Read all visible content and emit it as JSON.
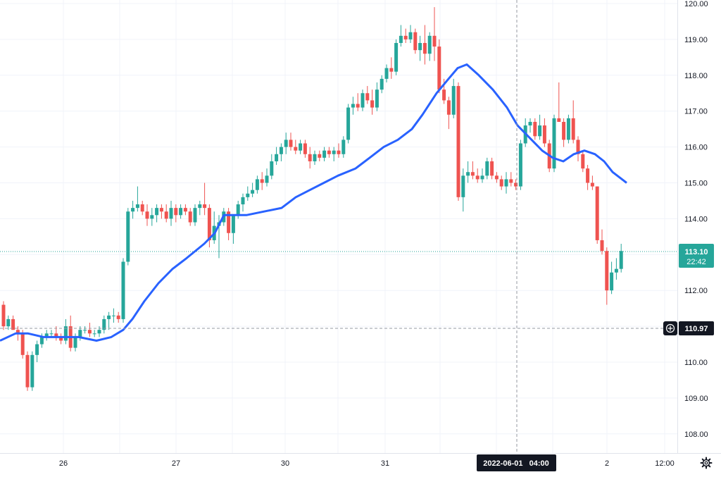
{
  "chart_data": {
    "type": "candlestick",
    "price_axis": {
      "ticks": [
        "120.00",
        "119.00",
        "118.00",
        "117.00",
        "116.00",
        "115.00",
        "114.00",
        "113.00",
        "112.00",
        "111.00",
        "110.00",
        "109.00",
        "108.00"
      ],
      "range": [
        107.6,
        120.1
      ],
      "grid": true
    },
    "time_axis": {
      "labels": [
        "26",
        "27",
        "30",
        "31",
        "2",
        "12:00"
      ],
      "crosshair_label": "2022-06-01   04:00"
    },
    "last_price": {
      "value": "113.10",
      "countdown": "22:42",
      "color": "#26a69a"
    },
    "crosshair_price": {
      "value": "110.97"
    },
    "colors": {
      "up": "#26a69a",
      "down": "#ef5350",
      "ma": "#2962ff",
      "grid": "#f0f3fa"
    },
    "candles": [
      [
        111.6,
        111.7,
        110.9,
        111.0
      ],
      [
        111.0,
        111.3,
        110.9,
        111.2
      ],
      [
        111.2,
        111.3,
        110.9,
        110.9
      ],
      [
        110.9,
        111.0,
        110.6,
        110.8
      ],
      [
        110.8,
        110.9,
        110.1,
        110.2
      ],
      [
        110.2,
        110.3,
        109.2,
        109.3
      ],
      [
        109.3,
        110.3,
        109.2,
        110.2
      ],
      [
        110.2,
        110.6,
        110.0,
        110.5
      ],
      [
        110.5,
        110.8,
        110.4,
        110.7
      ],
      [
        110.7,
        110.9,
        110.6,
        110.8
      ],
      [
        110.8,
        110.9,
        110.7,
        110.8
      ],
      [
        110.8,
        111.0,
        110.6,
        110.7
      ],
      [
        110.7,
        110.8,
        110.5,
        110.6
      ],
      [
        110.6,
        111.2,
        110.5,
        111.0
      ],
      [
        111.0,
        111.3,
        110.3,
        110.4
      ],
      [
        110.4,
        110.8,
        110.3,
        110.7
      ],
      [
        110.7,
        111.0,
        110.6,
        110.9
      ],
      [
        110.9,
        111.0,
        110.8,
        110.9
      ],
      [
        110.9,
        111.1,
        110.7,
        110.8
      ],
      [
        110.8,
        110.9,
        110.7,
        110.8
      ],
      [
        110.8,
        111.0,
        110.7,
        110.9
      ],
      [
        110.9,
        111.3,
        110.8,
        111.2
      ],
      [
        111.2,
        111.4,
        110.9,
        111.3
      ],
      [
        111.3,
        111.5,
        111.1,
        111.3
      ],
      [
        111.3,
        111.4,
        111.1,
        111.2
      ],
      [
        111.2,
        112.9,
        111.1,
        112.8
      ],
      [
        112.8,
        114.3,
        112.7,
        114.2
      ],
      [
        114.2,
        114.5,
        114.0,
        114.3
      ],
      [
        114.3,
        114.9,
        114.2,
        114.4
      ],
      [
        114.4,
        114.5,
        114.1,
        114.2
      ],
      [
        114.2,
        114.4,
        113.8,
        114.0
      ],
      [
        114.0,
        114.3,
        113.8,
        114.1
      ],
      [
        114.1,
        114.4,
        113.9,
        114.3
      ],
      [
        114.3,
        114.4,
        114.0,
        114.2
      ],
      [
        114.2,
        114.4,
        113.9,
        114.0
      ],
      [
        114.0,
        114.5,
        113.8,
        114.3
      ],
      [
        114.3,
        114.4,
        113.9,
        114.1
      ],
      [
        114.1,
        114.4,
        114.0,
        114.3
      ],
      [
        114.3,
        114.4,
        114.1,
        114.2
      ],
      [
        114.2,
        114.3,
        113.8,
        113.9
      ],
      [
        113.9,
        114.4,
        113.8,
        114.3
      ],
      [
        114.3,
        114.5,
        114.1,
        114.4
      ],
      [
        114.4,
        115.0,
        114.1,
        114.3
      ],
      [
        114.3,
        114.4,
        113.2,
        113.4
      ],
      [
        113.4,
        114.2,
        113.3,
        113.8
      ],
      [
        113.8,
        114.1,
        112.9,
        113.9
      ],
      [
        113.9,
        114.3,
        113.8,
        114.2
      ],
      [
        114.2,
        114.3,
        113.4,
        113.6
      ],
      [
        113.6,
        114.1,
        113.3,
        114.1
      ],
      [
        114.1,
        114.5,
        114.0,
        114.4
      ],
      [
        114.4,
        114.7,
        114.2,
        114.6
      ],
      [
        114.6,
        114.9,
        114.5,
        114.7
      ],
      [
        114.7,
        115.0,
        114.6,
        114.8
      ],
      [
        114.8,
        115.2,
        114.7,
        115.1
      ],
      [
        115.1,
        115.3,
        114.8,
        115.0
      ],
      [
        115.0,
        115.4,
        114.9,
        115.2
      ],
      [
        115.2,
        115.8,
        115.1,
        115.6
      ],
      [
        115.6,
        116.0,
        115.5,
        115.8
      ],
      [
        115.8,
        116.1,
        115.6,
        116.0
      ],
      [
        116.0,
        116.4,
        115.8,
        116.2
      ],
      [
        116.2,
        116.4,
        115.9,
        116.0
      ],
      [
        116.0,
        116.2,
        115.8,
        115.9
      ],
      [
        115.9,
        116.2,
        115.8,
        116.1
      ],
      [
        116.1,
        116.2,
        115.7,
        115.8
      ],
      [
        115.8,
        116.0,
        115.4,
        115.6
      ],
      [
        115.6,
        115.9,
        115.5,
        115.8
      ],
      [
        115.8,
        115.9,
        115.6,
        115.7
      ],
      [
        115.7,
        116.0,
        115.6,
        115.9
      ],
      [
        115.9,
        116.0,
        115.7,
        115.8
      ],
      [
        115.8,
        116.0,
        115.6,
        115.9
      ],
      [
        115.9,
        116.1,
        115.7,
        115.8
      ],
      [
        115.8,
        116.3,
        115.7,
        116.2
      ],
      [
        116.2,
        117.2,
        116.1,
        117.1
      ],
      [
        117.1,
        117.4,
        116.9,
        117.2
      ],
      [
        117.2,
        117.5,
        117.0,
        117.1
      ],
      [
        117.1,
        117.6,
        117.0,
        117.5
      ],
      [
        117.5,
        117.7,
        117.2,
        117.3
      ],
      [
        117.3,
        117.6,
        116.9,
        117.1
      ],
      [
        117.1,
        117.8,
        117.0,
        117.6
      ],
      [
        117.6,
        118.0,
        117.5,
        117.9
      ],
      [
        117.9,
        118.3,
        117.8,
        118.2
      ],
      [
        118.2,
        118.5,
        117.9,
        118.1
      ],
      [
        118.1,
        119.0,
        118.0,
        118.9
      ],
      [
        118.9,
        119.4,
        118.8,
        119.1
      ],
      [
        119.1,
        119.3,
        118.9,
        119.0
      ],
      [
        119.0,
        119.4,
        118.9,
        119.2
      ],
      [
        119.2,
        119.3,
        118.6,
        118.7
      ],
      [
        118.7,
        119.1,
        118.4,
        118.9
      ],
      [
        118.9,
        119.4,
        118.3,
        118.6
      ],
      [
        118.6,
        119.2,
        118.4,
        119.1
      ],
      [
        119.1,
        119.9,
        118.4,
        118.8
      ],
      [
        118.8,
        119.0,
        117.5,
        117.6
      ],
      [
        117.6,
        117.9,
        117.2,
        117.3
      ],
      [
        117.3,
        117.4,
        116.5,
        116.9
      ],
      [
        116.9,
        117.9,
        116.8,
        117.7
      ],
      [
        117.7,
        117.8,
        114.5,
        114.6
      ],
      [
        114.6,
        115.4,
        114.2,
        115.2
      ],
      [
        115.2,
        115.6,
        115.0,
        115.3
      ],
      [
        115.3,
        115.6,
        115.1,
        115.2
      ],
      [
        115.2,
        115.4,
        115.0,
        115.1
      ],
      [
        115.1,
        115.4,
        115.0,
        115.2
      ],
      [
        115.2,
        115.7,
        115.1,
        115.6
      ],
      [
        115.6,
        115.7,
        115.1,
        115.2
      ],
      [
        115.2,
        115.3,
        115.0,
        115.1
      ],
      [
        115.1,
        115.2,
        114.8,
        114.9
      ],
      [
        114.9,
        115.3,
        114.7,
        115.1
      ],
      [
        115.1,
        115.3,
        114.9,
        115.0
      ],
      [
        115.0,
        115.1,
        114.8,
        114.9
      ],
      [
        114.9,
        116.2,
        114.8,
        116.1
      ],
      [
        116.1,
        116.8,
        116.0,
        116.6
      ],
      [
        116.6,
        116.8,
        116.4,
        116.7
      ],
      [
        116.7,
        116.8,
        116.2,
        116.3
      ],
      [
        116.3,
        116.9,
        116.2,
        116.6
      ],
      [
        116.6,
        116.8,
        116.0,
        116.1
      ],
      [
        116.1,
        116.2,
        115.3,
        115.4
      ],
      [
        115.4,
        116.9,
        115.3,
        116.8
      ],
      [
        116.8,
        117.8,
        116.7,
        116.7
      ],
      [
        116.7,
        116.8,
        116.0,
        116.2
      ],
      [
        116.2,
        116.9,
        116.1,
        116.8
      ],
      [
        116.8,
        117.3,
        116.1,
        116.2
      ],
      [
        116.2,
        116.3,
        115.6,
        115.8
      ],
      [
        115.8,
        115.9,
        115.3,
        115.4
      ],
      [
        115.4,
        115.5,
        114.8,
        115.0
      ],
      [
        115.0,
        115.2,
        114.8,
        114.9
      ],
      [
        114.9,
        114.9,
        113.3,
        113.4
      ],
      [
        113.4,
        113.7,
        113.0,
        113.1
      ],
      [
        113.1,
        113.2,
        111.6,
        112.0
      ],
      [
        112.0,
        112.8,
        111.9,
        112.5
      ],
      [
        112.5,
        112.9,
        112.3,
        112.6
      ],
      [
        112.6,
        113.3,
        112.5,
        113.1
      ]
    ],
    "ma": [
      [
        0,
        110.6
      ],
      [
        22,
        110.8
      ],
      [
        40,
        110.8
      ],
      [
        62,
        110.7
      ],
      [
        88,
        110.7
      ],
      [
        112,
        110.7
      ],
      [
        137,
        110.6
      ],
      [
        158,
        110.7
      ],
      [
        175,
        110.9
      ],
      [
        188,
        111.2
      ],
      [
        205,
        111.7
      ],
      [
        225,
        112.2
      ],
      [
        245,
        112.6
      ],
      [
        265,
        112.9
      ],
      [
        290,
        113.3
      ],
      [
        305,
        113.6
      ],
      [
        318,
        114.1
      ],
      [
        330,
        114.1
      ],
      [
        350,
        114.1
      ],
      [
        375,
        114.2
      ],
      [
        400,
        114.3
      ],
      [
        420,
        114.6
      ],
      [
        440,
        114.8
      ],
      [
        460,
        115.0
      ],
      [
        480,
        115.2
      ],
      [
        505,
        115.4
      ],
      [
        525,
        115.7
      ],
      [
        545,
        116.0
      ],
      [
        565,
        116.2
      ],
      [
        585,
        116.5
      ],
      [
        600,
        116.9
      ],
      [
        620,
        117.5
      ],
      [
        637,
        117.9
      ],
      [
        650,
        118.2
      ],
      [
        663,
        118.3
      ],
      [
        680,
        118.0
      ],
      [
        700,
        117.6
      ],
      [
        720,
        117.1
      ],
      [
        735,
        116.6
      ],
      [
        750,
        116.3
      ],
      [
        770,
        115.9
      ],
      [
        785,
        115.7
      ],
      [
        800,
        115.6
      ],
      [
        815,
        115.8
      ],
      [
        830,
        115.9
      ],
      [
        845,
        115.8
      ],
      [
        858,
        115.6
      ],
      [
        870,
        115.3
      ],
      [
        890,
        115.0
      ]
    ]
  }
}
